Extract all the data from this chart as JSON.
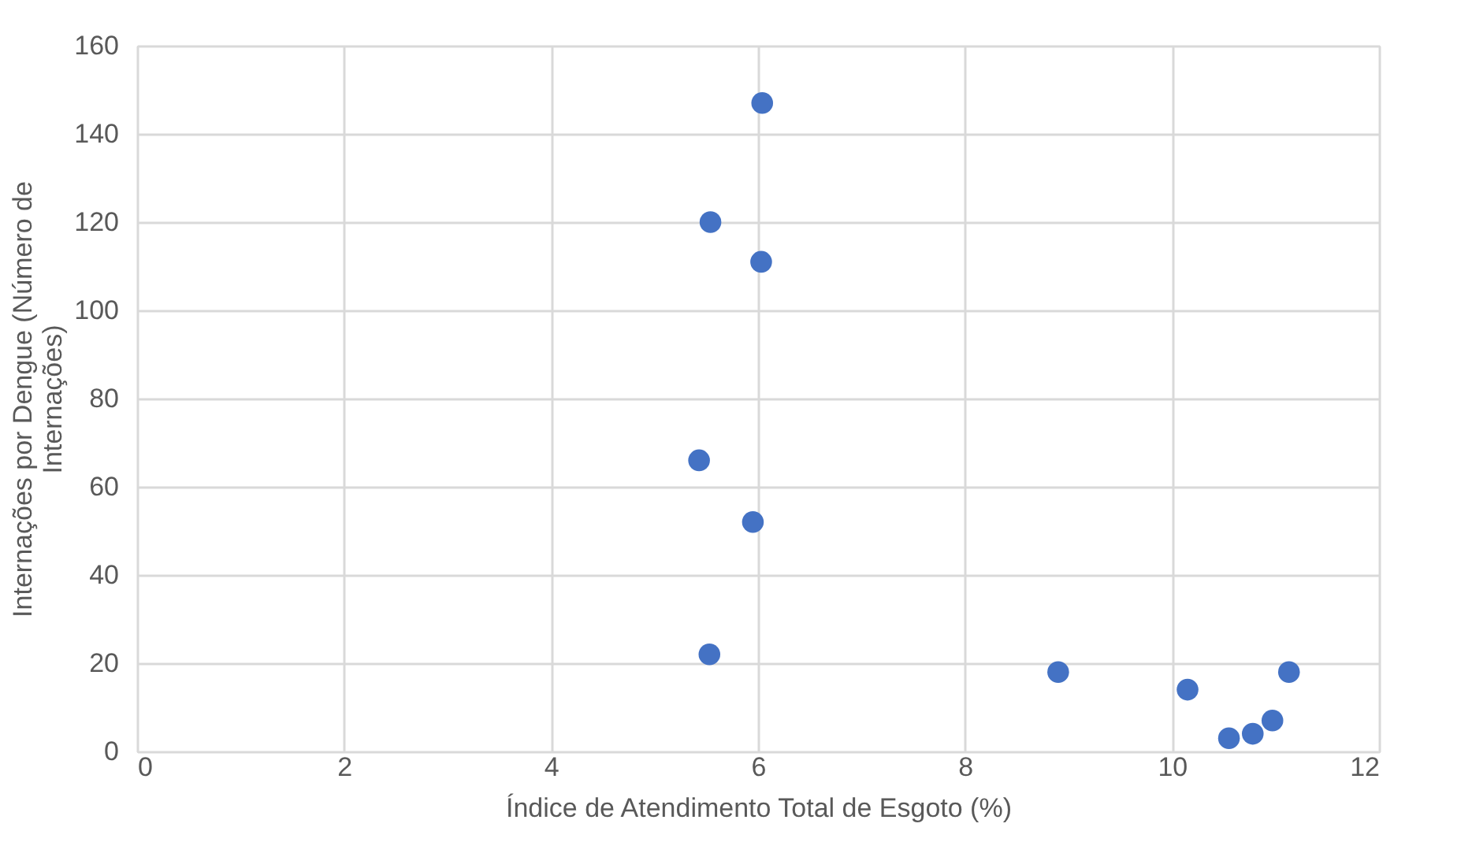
{
  "chart_data": {
    "type": "scatter",
    "xlabel": "Índice de Atendimento Total de Esgoto (%)",
    "ylabel": "Internações por Dengue (Número de Internações)",
    "x": [
      6.04,
      5.54,
      6.03,
      5.43,
      5.95,
      5.53,
      8.9,
      10.15,
      10.55,
      10.78,
      10.97,
      11.13
    ],
    "series": [
      {
        "color": "#4472c4",
        "values": [
          147,
          120,
          111,
          66,
          52,
          22,
          18,
          14,
          3,
          4,
          7,
          18
        ]
      }
    ],
    "xlim": [
      0,
      12
    ],
    "xticks": [
      0,
      2,
      4,
      6,
      8,
      10,
      12
    ],
    "ylim": [
      0,
      160
    ],
    "yticks": [
      0,
      20,
      40,
      60,
      80,
      100,
      120,
      140,
      160
    ],
    "grid": true,
    "marker": "circle"
  }
}
